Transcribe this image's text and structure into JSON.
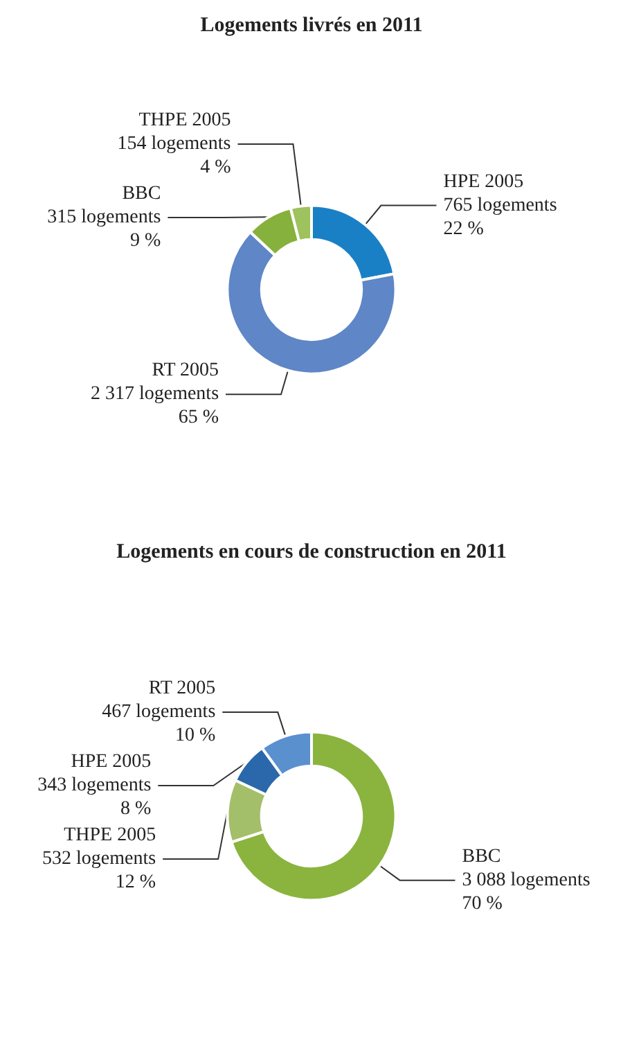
{
  "chart_data": [
    {
      "type": "donut",
      "title": "Logements livrés en 2011",
      "categories": [
        "HPE 2005",
        "RT 2005",
        "BBC",
        "THPE 2005"
      ],
      "values": [
        22,
        65,
        9,
        4
      ],
      "value_labels": [
        "765 logements\n\n22 %",
        "2 317 logements\n\n65 %",
        "315 logements\n\n9 %",
        "154 logements\n\n4 %"
      ],
      "colors": [
        "#1a80c6",
        "#5f86c6",
        "#86b13c",
        "#9dc25e"
      ],
      "legend": false
    },
    {
      "type": "donut",
      "title": "Logements en cours de construction en 2011",
      "categories": [
        "BBC",
        "THPE 2005",
        "HPE 2005",
        "RT 2005"
      ],
      "values": [
        70,
        12,
        8,
        10
      ],
      "value_labels": [
        "3 088 logements\n\n70 %",
        "532 logements\n\n12 %",
        "343 logements\n\n8 %",
        "467 logements\n\n10 %"
      ],
      "colors": [
        "#8ab43e",
        "#a3bf6a",
        "#2a68ab",
        "#5b90cf"
      ],
      "legend": false
    }
  ]
}
